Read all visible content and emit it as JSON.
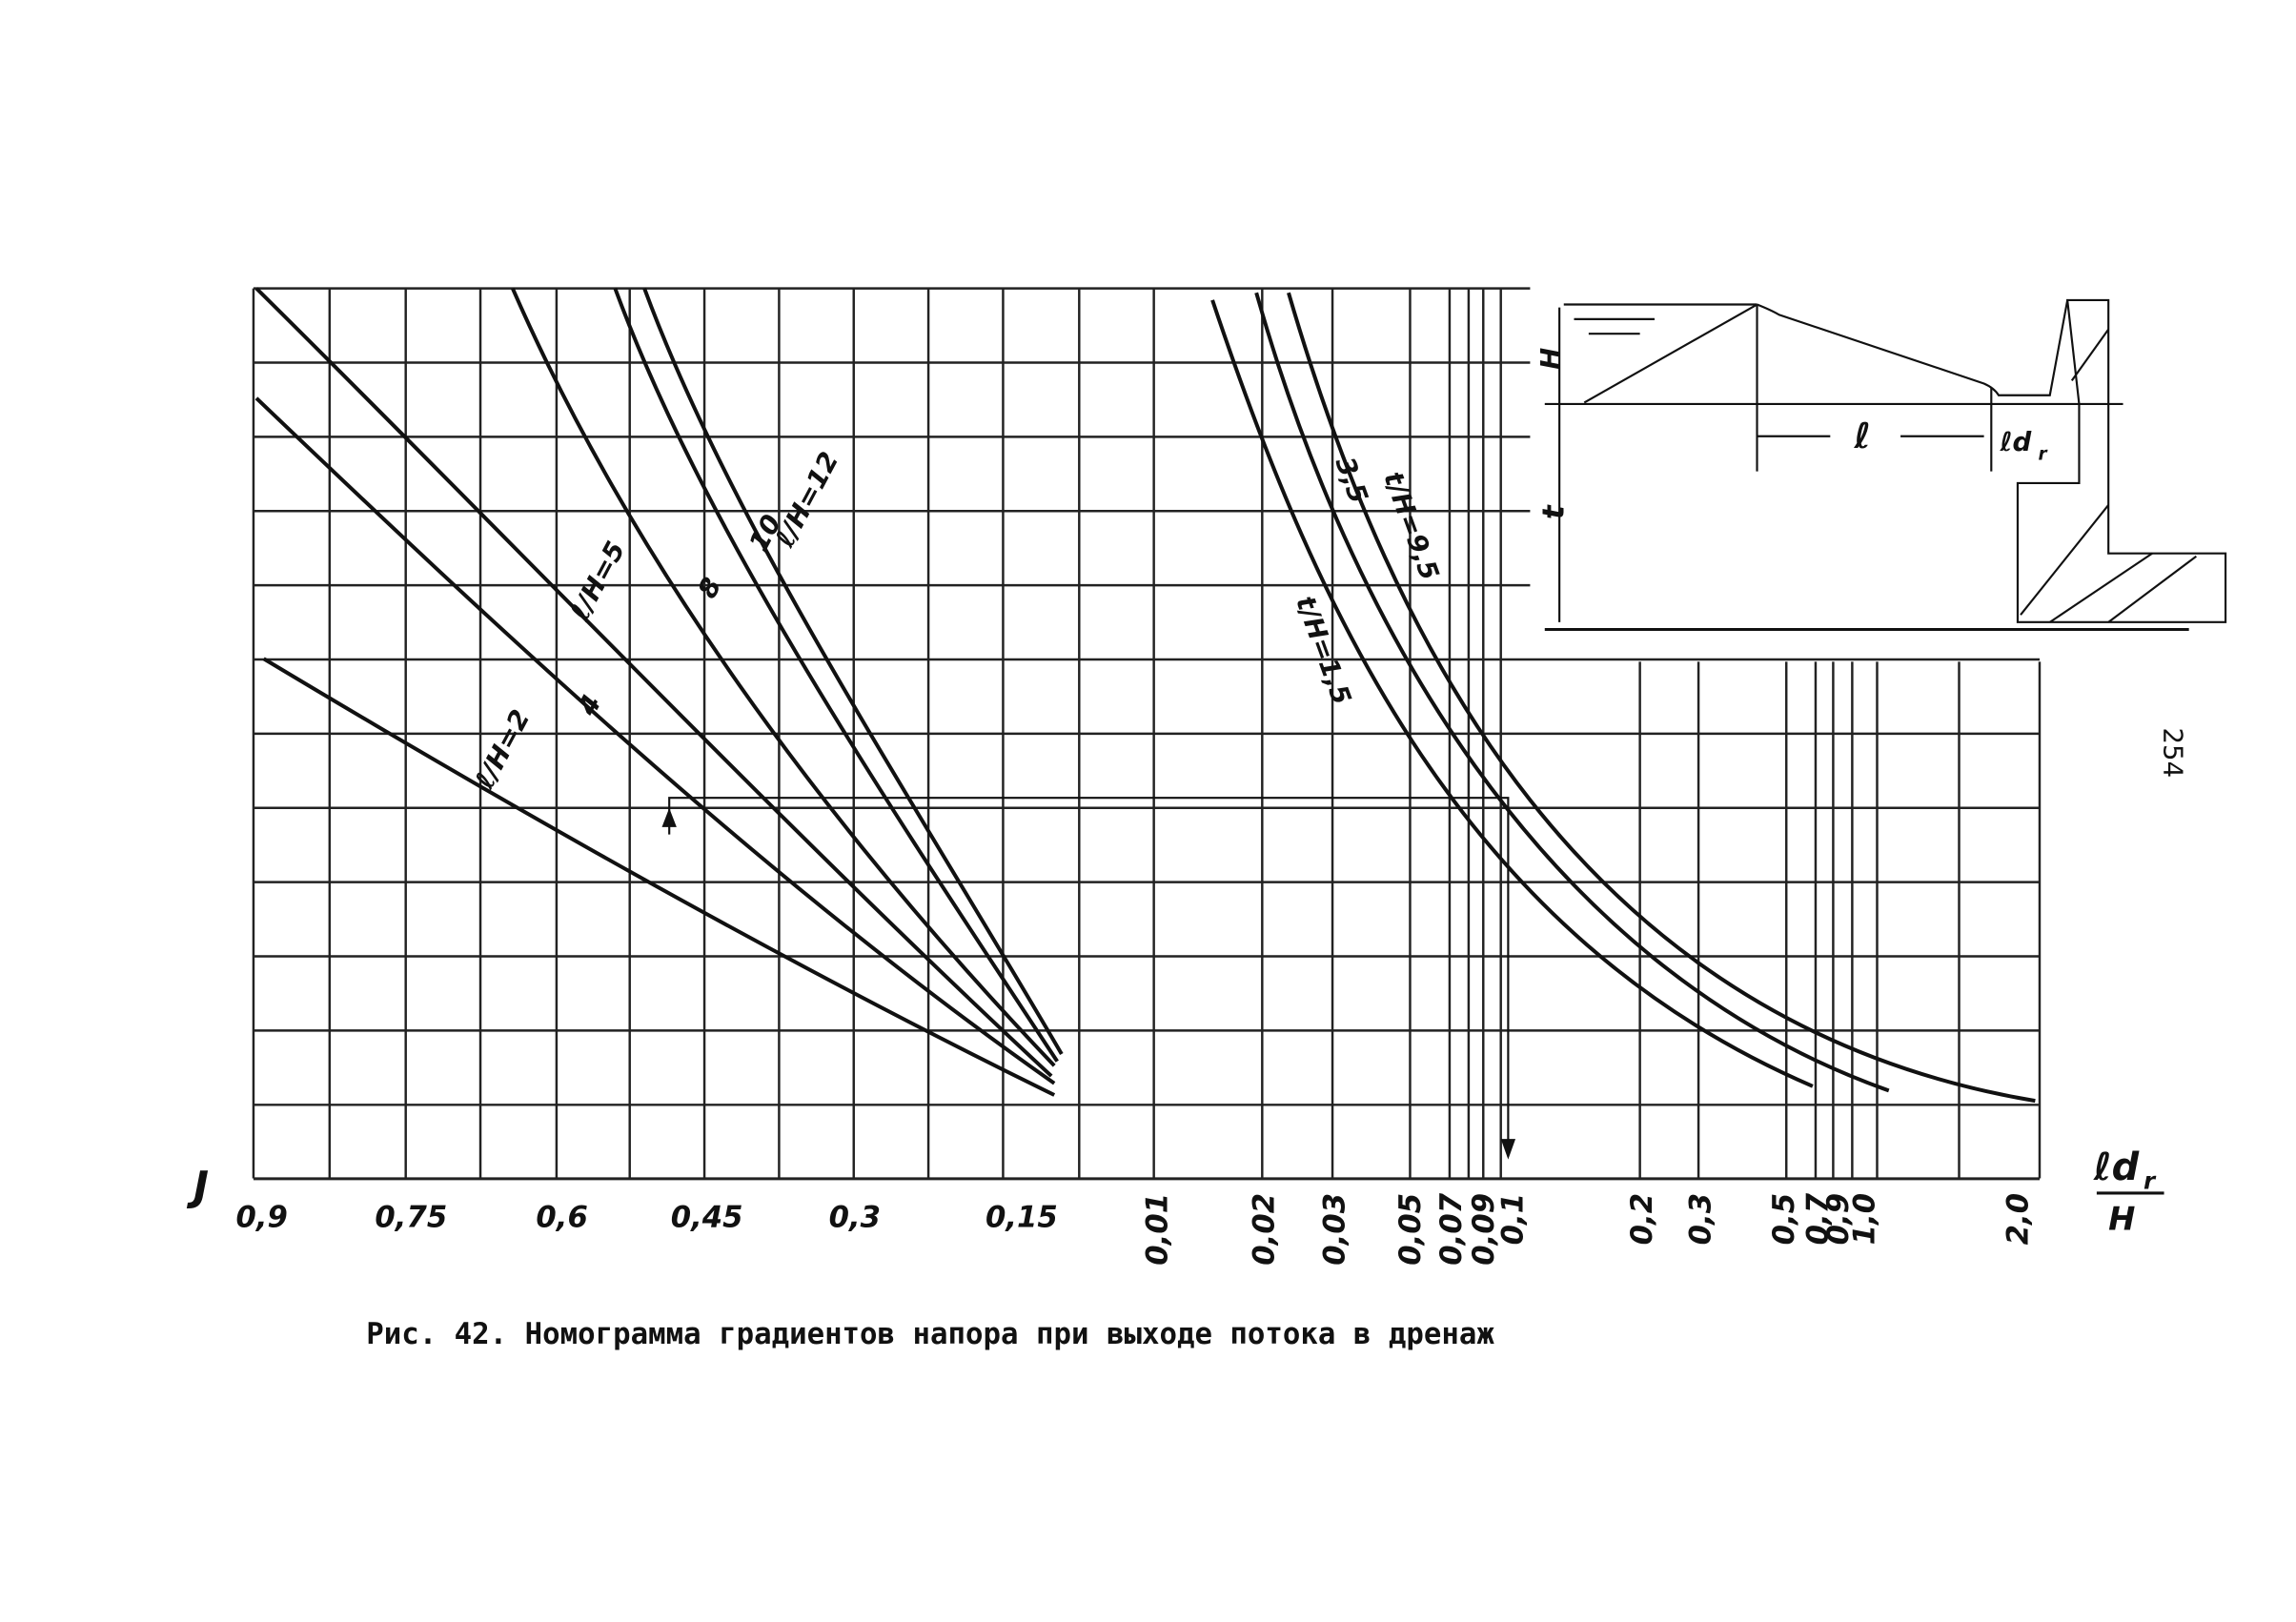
{
  "figure": {
    "caption": "Рис. 42. Номограмма градиентов напора при выходе потока в дренаж",
    "page_number": "254",
    "y_axis_label": "J",
    "x_axis_label": {
      "numerator": "ℓd",
      "subscript": "r",
      "denominator": "H"
    },
    "left_ticks": [
      "0,9",
      "0,75",
      "0,6",
      "0,45",
      "0,3",
      "0,15"
    ],
    "right_ticks": [
      "0,01",
      "0,02",
      "0,03",
      "0,05",
      "0,07",
      "0,09",
      "0,1",
      "0,2",
      "0,3",
      "0,5",
      "0,7",
      "0,9",
      "1,0",
      "2,0"
    ],
    "left_curve_labels": [
      "ℓ/H=2",
      "4",
      "ℓ/H=5",
      "8",
      "10",
      "ℓ/H=12"
    ],
    "right_curve_labels": [
      "t/H=1,5",
      "3,5",
      "t/H=9,5"
    ],
    "inset_labels": {
      "head": "H",
      "depth": "t",
      "length": "ℓ",
      "drain": "ℓd",
      "drain_subscript": "r"
    }
  }
}
